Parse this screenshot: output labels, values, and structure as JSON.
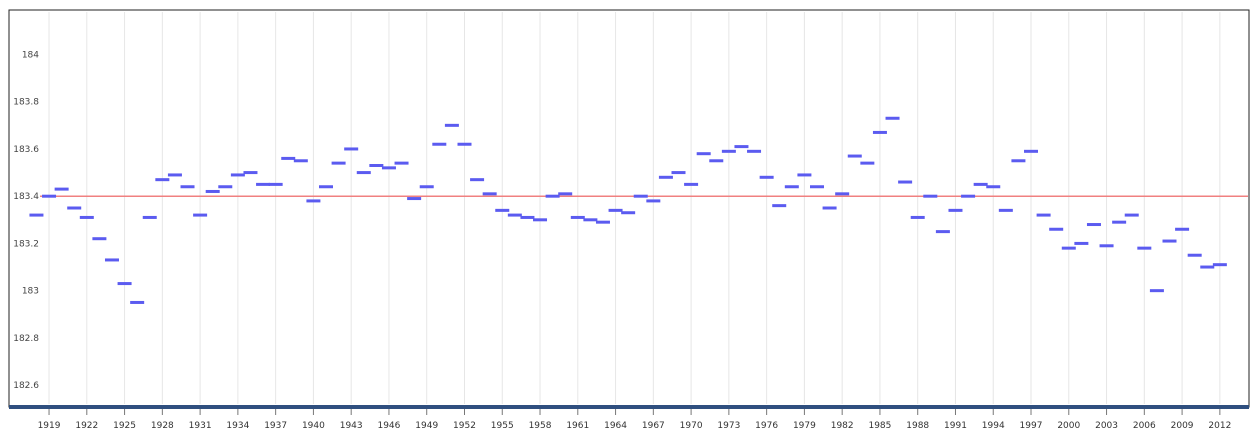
{
  "chart_data": {
    "type": "scatter",
    "title": "",
    "xlabel": "",
    "ylabel": "",
    "marker": "horizontal-dash",
    "colors": {
      "points": "#5b5bf0",
      "reference_line": "#f08080",
      "grid": "#e6e6e6",
      "axis": "#2f4f7f"
    },
    "grid": true,
    "ylim": [
      182.52,
      184.18
    ],
    "xlim": [
      1918.6,
      2013.6
    ],
    "yticks": [
      182.6,
      182.8,
      183,
      183.2,
      183.4,
      183.6,
      183.8,
      184
    ],
    "ytick_labels": [
      "182.6",
      "182.8",
      "183",
      "183.2",
      "183.4",
      "183.6",
      "183.8",
      "184"
    ],
    "xticks": [
      1919,
      1922,
      1925,
      1928,
      1931,
      1934,
      1937,
      1940,
      1943,
      1946,
      1949,
      1952,
      1955,
      1958,
      1961,
      1964,
      1967,
      1970,
      1973,
      1976,
      1979,
      1982,
      1985,
      1988,
      1991,
      1994,
      1997,
      2000,
      2003,
      2006,
      2009,
      2012
    ],
    "xtick_labels": [
      "1919",
      "1922",
      "1925",
      "1928",
      "1931",
      "1934",
      "1937",
      "1940",
      "1943",
      "1946",
      "1949",
      "1952",
      "1955",
      "1958",
      "1961",
      "1964",
      "1967",
      "1970",
      "1973",
      "1976",
      "1979",
      "1982",
      "1985",
      "1988",
      "1991",
      "1994",
      "1997",
      "2000",
      "2003",
      "2006",
      "2009",
      "2012"
    ],
    "reference_line": {
      "y": 183.4
    },
    "x": [
      1918,
      1919,
      1920,
      1921,
      1922,
      1923,
      1924,
      1925,
      1926,
      1927,
      1928,
      1929,
      1930,
      1931,
      1932,
      1933,
      1934,
      1935,
      1936,
      1937,
      1938,
      1939,
      1940,
      1941,
      1942,
      1943,
      1944,
      1945,
      1946,
      1947,
      1948,
      1949,
      1950,
      1951,
      1952,
      1953,
      1954,
      1955,
      1956,
      1957,
      1958,
      1959,
      1960,
      1961,
      1962,
      1963,
      1964,
      1965,
      1966,
      1967,
      1968,
      1969,
      1970,
      1971,
      1972,
      1973,
      1974,
      1975,
      1976,
      1977,
      1978,
      1979,
      1980,
      1981,
      1982,
      1983,
      1984,
      1985,
      1986,
      1987,
      1988,
      1989,
      1990,
      1991,
      1992,
      1993,
      1994,
      1995,
      1996,
      1997,
      1998,
      1999,
      2000,
      2001,
      2002,
      2003,
      2004,
      2005,
      2006,
      2007,
      2008,
      2009,
      2010,
      2011,
      2012
    ],
    "series": [
      {
        "values": [
          183.32,
          183.4,
          183.43,
          183.35,
          183.31,
          183.22,
          183.13,
          183.03,
          182.95,
          183.31,
          183.47,
          183.49,
          183.44,
          183.32,
          183.42,
          183.44,
          183.49,
          183.5,
          183.45,
          183.45,
          183.56,
          183.55,
          183.38,
          183.44,
          183.54,
          183.6,
          183.5,
          183.53,
          183.52,
          183.54,
          183.39,
          183.44,
          183.62,
          183.7,
          183.62,
          183.47,
          183.41,
          183.34,
          183.32,
          183.31,
          183.3,
          183.4,
          183.41,
          183.31,
          183.3,
          183.29,
          183.34,
          183.33,
          183.4,
          183.38,
          183.48,
          183.5,
          183.45,
          183.58,
          183.55,
          183.59,
          183.61,
          183.59,
          183.48,
          183.36,
          183.44,
          183.49,
          183.44,
          183.35,
          183.41,
          183.57,
          183.54,
          183.67,
          183.73,
          183.46,
          183.31,
          183.4,
          183.25,
          183.34,
          183.4,
          183.45,
          183.44,
          183.34,
          183.55,
          183.59,
          183.32,
          183.26,
          183.18,
          183.2,
          183.28,
          183.19,
          183.29,
          183.32,
          183.18,
          183.0,
          183.21,
          183.26,
          183.15,
          183.1,
          183.11
        ]
      }
    ]
  }
}
